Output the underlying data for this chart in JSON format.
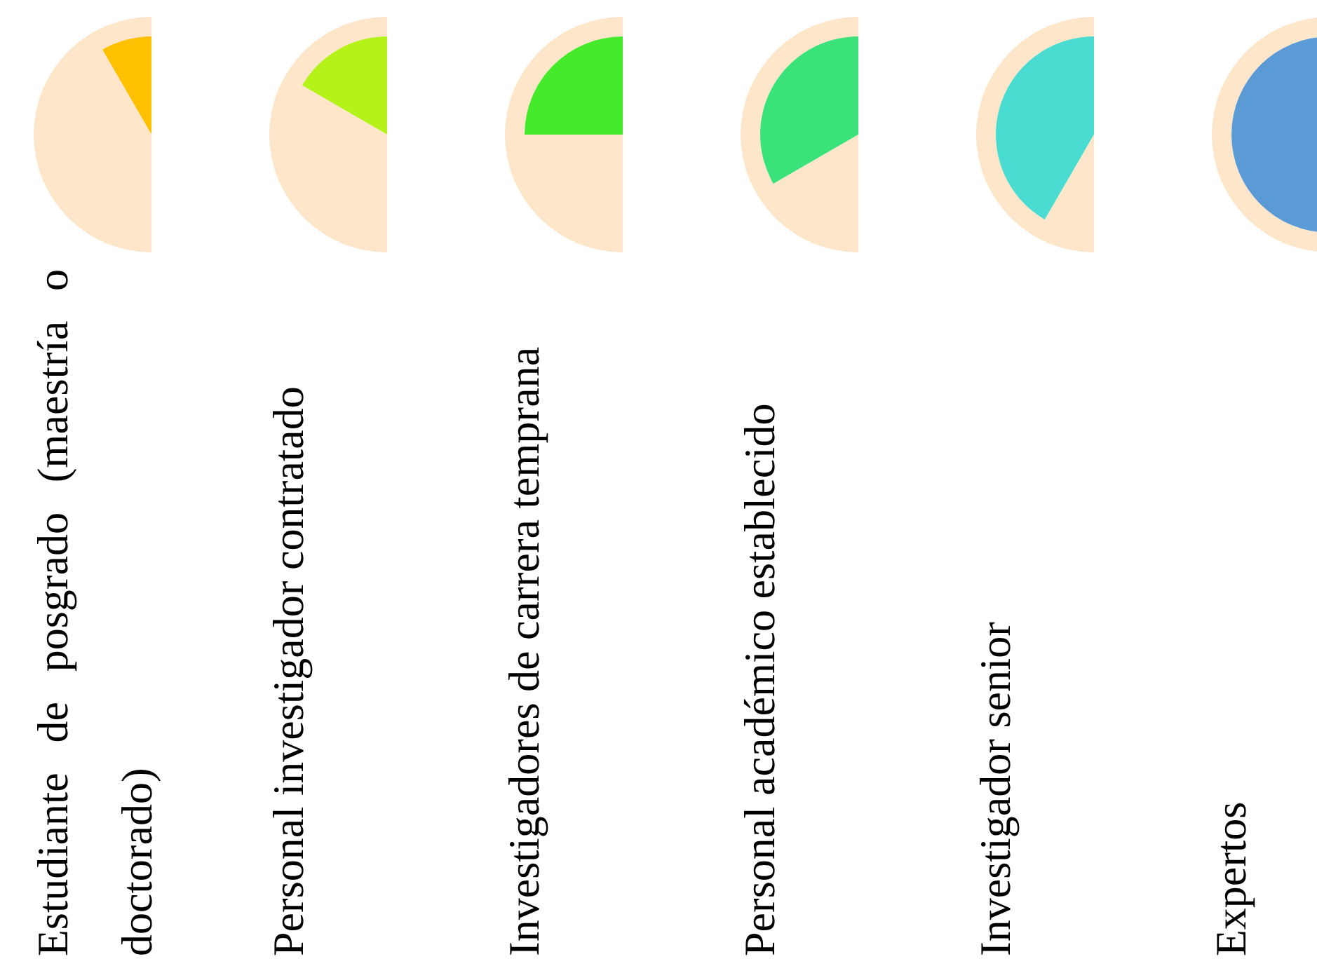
{
  "chart_data": [
    {
      "type": "pie",
      "xlabel": "Estudiante de posgrado (maestría o doctorado)",
      "categories": [
        null,
        null
      ],
      "values": [
        16.7,
        83.3
      ],
      "colors": [
        "#ffc000",
        "#fde6c9"
      ],
      "legend": false
    },
    {
      "type": "pie",
      "xlabel": "Personal investigador contratado",
      "categories": [
        null,
        null
      ],
      "values": [
        33.3,
        66.7
      ],
      "colors": [
        "#b5f21a",
        "#fde6c9"
      ],
      "legend": false
    },
    {
      "type": "pie",
      "xlabel": "Investigadores de carrera temprana",
      "categories": [
        null,
        null
      ],
      "values": [
        50,
        50
      ],
      "colors": [
        "#45ea2b",
        "#fde6c9"
      ],
      "legend": false
    },
    {
      "type": "pie",
      "xlabel": "Personal académico establecido",
      "categories": [
        null,
        null
      ],
      "values": [
        66.7,
        33.3
      ],
      "colors": [
        "#3ae27a",
        "#fde6c9"
      ],
      "legend": false
    },
    {
      "type": "pie",
      "xlabel": "Investigador senior",
      "categories": [
        null,
        null
      ],
      "values": [
        83.3,
        16.7
      ],
      "colors": [
        "#4adcd0",
        "#fde6c9"
      ],
      "legend": false
    },
    {
      "type": "pie",
      "xlabel": "Expertos",
      "categories": [
        null,
        null
      ],
      "values": [
        100,
        0
      ],
      "colors": [
        "#5b9bd5",
        "#fde6c9"
      ],
      "legend": false
    }
  ]
}
